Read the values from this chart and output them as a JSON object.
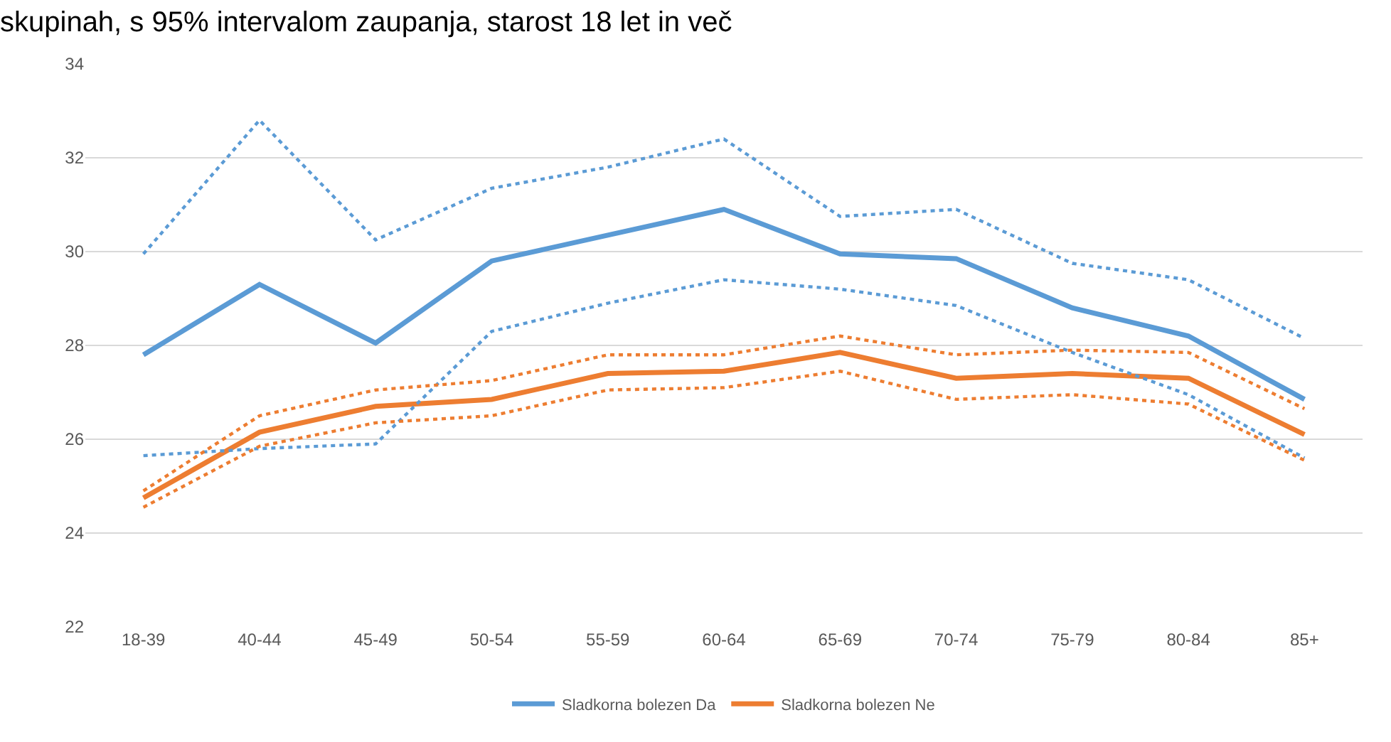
{
  "chart_data": {
    "type": "line",
    "title": "skupinah, s 95% intervalom zaupanja, starost 18 let in več",
    "categories": [
      "18-39",
      "40-44",
      "45-49",
      "50-54",
      "55-59",
      "60-64",
      "65-69",
      "70-74",
      "75-79",
      "80-84",
      "85+"
    ],
    "series": [
      {
        "name": "Sladkorna bolezen Da",
        "color": "#5b9bd5",
        "line_style": "solid",
        "values": [
          27.8,
          29.3,
          28.05,
          29.8,
          30.35,
          30.9,
          29.95,
          29.85,
          28.8,
          28.2,
          26.85
        ]
      },
      {
        "name": "Sladkorna bolezen Ne",
        "color": "#ed7d31",
        "line_style": "solid",
        "values": [
          24.75,
          26.15,
          26.7,
          26.85,
          27.4,
          27.45,
          27.85,
          27.3,
          27.4,
          27.3,
          26.1
        ]
      },
      {
        "color": "#5b9bd5",
        "line_style": "dotted",
        "values": [
          29.95,
          32.8,
          30.25,
          31.35,
          31.8,
          32.4,
          30.75,
          30.9,
          29.75,
          29.4,
          28.15
        ]
      },
      {
        "color": "#5b9bd5",
        "line_style": "dotted",
        "values": [
          25.65,
          25.8,
          25.9,
          28.3,
          28.9,
          29.4,
          29.2,
          28.85,
          27.85,
          26.95,
          25.6
        ]
      },
      {
        "color": "#ed7d31",
        "line_style": "dotted",
        "values": [
          24.9,
          26.5,
          27.05,
          27.25,
          27.8,
          27.8,
          28.2,
          27.8,
          27.9,
          27.85,
          26.65
        ]
      },
      {
        "color": "#ed7d31",
        "line_style": "dotted",
        "values": [
          24.55,
          25.85,
          26.35,
          26.5,
          27.05,
          27.1,
          27.45,
          26.85,
          26.95,
          26.75,
          25.55
        ]
      }
    ],
    "ylim": [
      22,
      34
    ],
    "yticks": [
      22,
      24,
      26,
      28,
      30,
      32,
      34
    ],
    "grid": "y",
    "legend": "bottom",
    "marker": "none"
  }
}
